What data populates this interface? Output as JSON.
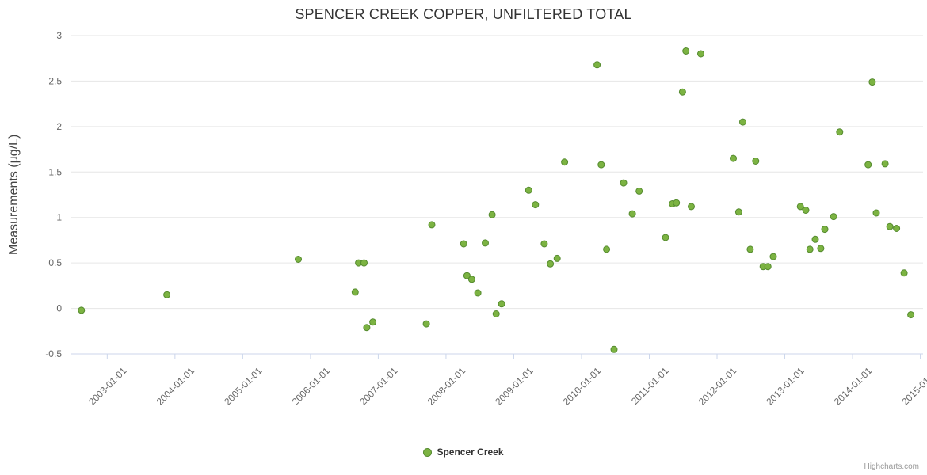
{
  "credits": {
    "label": "Highcharts.com"
  },
  "legend": {
    "series_label": "Spencer Creek"
  },
  "chart_data": {
    "type": "scatter",
    "title": "SPENCER CREEK COPPER, UNFILTERED TOTAL",
    "xlabel": "",
    "ylabel": "Measurements (µg/L)",
    "legend_position": "bottom-center",
    "grid": "horizontal-only",
    "x_unit": "decimal-year (dates on axis)",
    "xlim": [
      2002.47,
      2015.04
    ],
    "ylim": [
      -0.5,
      3
    ],
    "y_ticks": [
      -0.5,
      0,
      0.5,
      1,
      1.5,
      2,
      2.5,
      3
    ],
    "x_ticks": [
      {
        "year": 2003,
        "label": "2003-01-01"
      },
      {
        "year": 2004,
        "label": "2004-01-01"
      },
      {
        "year": 2005,
        "label": "2005-01-01"
      },
      {
        "year": 2006,
        "label": "2006-01-01"
      },
      {
        "year": 2007,
        "label": "2007-01-01"
      },
      {
        "year": 2008,
        "label": "2008-01-01"
      },
      {
        "year": 2009,
        "label": "2009-01-01"
      },
      {
        "year": 2010,
        "label": "2010-01-01"
      },
      {
        "year": 2011,
        "label": "2011-01-01"
      },
      {
        "year": 2012,
        "label": "2012-01-01"
      },
      {
        "year": 2013,
        "label": "2013-01-01"
      },
      {
        "year": 2014,
        "label": "2014-01-01"
      },
      {
        "year": 2015,
        "label": "2015-01-01"
      }
    ],
    "colors": {
      "point_fill": "#7cb342",
      "point_stroke": "#558b2f",
      "grid_line": "#e6e6e6",
      "axis_line": "#ccd6eb",
      "tick_label": "#666666",
      "title": "#333333",
      "axis_title": "#444444",
      "credits": "#999999"
    },
    "series": [
      {
        "name": "Spencer Creek",
        "points": [
          [
            2002.62,
            -0.02
          ],
          [
            2003.88,
            0.15
          ],
          [
            2005.82,
            0.54
          ],
          [
            2006.66,
            0.18
          ],
          [
            2006.71,
            0.5
          ],
          [
            2006.79,
            0.5
          ],
          [
            2006.83,
            -0.21
          ],
          [
            2006.92,
            -0.15
          ],
          [
            2007.71,
            -0.17
          ],
          [
            2007.79,
            0.92
          ],
          [
            2008.26,
            0.71
          ],
          [
            2008.31,
            0.36
          ],
          [
            2008.38,
            0.32
          ],
          [
            2008.47,
            0.17
          ],
          [
            2008.58,
            0.72
          ],
          [
            2008.68,
            1.03
          ],
          [
            2008.74,
            -0.06
          ],
          [
            2008.82,
            0.05
          ],
          [
            2009.22,
            1.3
          ],
          [
            2009.32,
            1.14
          ],
          [
            2009.45,
            0.71
          ],
          [
            2009.54,
            0.49
          ],
          [
            2009.64,
            0.55
          ],
          [
            2009.75,
            1.61
          ],
          [
            2010.23,
            2.68
          ],
          [
            2010.29,
            1.58
          ],
          [
            2010.37,
            0.65
          ],
          [
            2010.48,
            -0.45
          ],
          [
            2010.62,
            1.38
          ],
          [
            2010.75,
            1.04
          ],
          [
            2010.85,
            1.29
          ],
          [
            2011.24,
            0.78
          ],
          [
            2011.34,
            1.15
          ],
          [
            2011.4,
            1.16
          ],
          [
            2011.49,
            2.38
          ],
          [
            2011.54,
            2.83
          ],
          [
            2011.62,
            1.12
          ],
          [
            2011.76,
            2.8
          ],
          [
            2012.24,
            1.65
          ],
          [
            2012.32,
            1.06
          ],
          [
            2012.38,
            2.05
          ],
          [
            2012.49,
            0.65
          ],
          [
            2012.57,
            1.62
          ],
          [
            2012.68,
            0.46
          ],
          [
            2012.75,
            0.46
          ],
          [
            2012.83,
            0.57
          ],
          [
            2013.23,
            1.12
          ],
          [
            2013.31,
            1.08
          ],
          [
            2013.37,
            0.65
          ],
          [
            2013.45,
            0.76
          ],
          [
            2013.53,
            0.66
          ],
          [
            2013.59,
            0.87
          ],
          [
            2013.72,
            1.01
          ],
          [
            2013.81,
            1.94
          ],
          [
            2014.23,
            1.58
          ],
          [
            2014.29,
            2.49
          ],
          [
            2014.35,
            1.05
          ],
          [
            2014.48,
            1.59
          ],
          [
            2014.55,
            0.9
          ],
          [
            2014.65,
            0.88
          ],
          [
            2014.76,
            0.39
          ],
          [
            2014.86,
            -0.07
          ]
        ]
      }
    ]
  }
}
